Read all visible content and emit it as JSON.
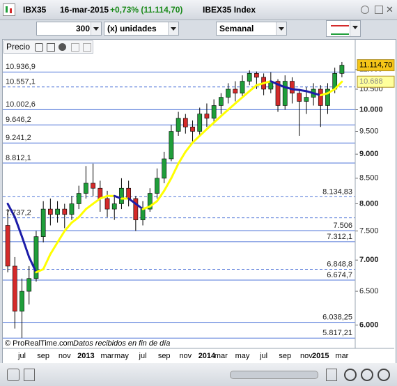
{
  "window": {
    "symbol": "IBX35",
    "date": "16-mar-2015",
    "change": "+0,73% (11.114,70)",
    "name": "IBEX35 Index"
  },
  "toolbar": {
    "units_count": "300",
    "units": "(x) unidades",
    "period": "Semanal"
  },
  "panel": {
    "label": "Precio"
  },
  "footer": {
    "copyright": "© ProRealTime.com",
    "note": "Datos recibidos en fin de día"
  },
  "chart_data": {
    "type": "candlestick",
    "log_scale": true,
    "categories": [
      null,
      null,
      "jul",
      null,
      null,
      "sep",
      null,
      null,
      "nov",
      null,
      null,
      "2013",
      null,
      null,
      "mar",
      null,
      "may",
      null,
      null,
      "jul",
      null,
      null,
      "sep",
      null,
      null,
      "nov",
      null,
      null,
      "2014",
      null,
      "mar",
      null,
      null,
      "may",
      null,
      null,
      "jul",
      null,
      null,
      "sep",
      null,
      null,
      "nov",
      null,
      "2015",
      null,
      null,
      "mar"
    ],
    "open": [
      7600,
      6900,
      6200,
      6500,
      6700,
      7400,
      7900,
      7800,
      7900,
      7800,
      8000,
      8200,
      8400,
      8300,
      8100,
      7900,
      8000,
      8300,
      8100,
      7700,
      7900,
      8200,
      8500,
      8900,
      9500,
      9800,
      9600,
      9500,
      9900,
      9800,
      10100,
      10300,
      10500,
      10400,
      10700,
      10900,
      10800,
      10500,
      10700,
      10100,
      10700,
      10400,
      10200,
      10300,
      10500,
      10100,
      10500,
      10900
    ],
    "high": [
      7900,
      7050,
      6700,
      6900,
      7500,
      8050,
      8100,
      8050,
      8000,
      8150,
      8350,
      8750,
      8800,
      8450,
      8250,
      8150,
      8500,
      8450,
      8150,
      8050,
      8300,
      8700,
      9050,
      9650,
      9950,
      9900,
      9750,
      10050,
      10150,
      10250,
      10400,
      10650,
      10700,
      10850,
      10980,
      10950,
      10900,
      10930,
      10750,
      10850,
      10800,
      10500,
      10550,
      10650,
      10600,
      10650,
      11050,
      11200
    ],
    "low": [
      6800,
      5950,
      5820,
      6300,
      6650,
      7300,
      7600,
      7650,
      7550,
      7700,
      7900,
      8100,
      8150,
      7850,
      7750,
      7700,
      7900,
      7950,
      7500,
      7600,
      7850,
      8100,
      8400,
      8850,
      9400,
      9450,
      9250,
      9400,
      9600,
      9700,
      9900,
      10150,
      10200,
      10300,
      10600,
      10500,
      10350,
      10400,
      9950,
      10000,
      10150,
      9400,
      9900,
      10100,
      9600,
      9900,
      10400,
      10800
    ],
    "close": [
      6900,
      6200,
      6500,
      6700,
      7400,
      7900,
      7800,
      7900,
      7800,
      8000,
      8200,
      8400,
      8300,
      8100,
      7900,
      8000,
      8300,
      8100,
      7700,
      7900,
      8200,
      8500,
      8900,
      9500,
      9800,
      9600,
      9500,
      9900,
      9800,
      10100,
      10300,
      10500,
      10400,
      10700,
      10900,
      10800,
      10500,
      10700,
      10100,
      10700,
      10400,
      10200,
      10300,
      10500,
      10100,
      10500,
      10900,
      11115
    ],
    "up_color": "#1f9e3a",
    "down_color": "#d42a2a",
    "wick_color": "#000000",
    "moving_average": {
      "values": [
        8000,
        7750,
        7400,
        7050,
        6800,
        6850,
        7100,
        7300,
        7500,
        7650,
        7750,
        7900,
        8000,
        8100,
        8150,
        8150,
        8100,
        8100,
        8000,
        7900,
        7950,
        8050,
        8250,
        8500,
        8800,
        9050,
        9250,
        9400,
        9550,
        9700,
        9850,
        10000,
        10150,
        10300,
        10450,
        10600,
        10650,
        10700,
        10620,
        10550,
        10500,
        10480,
        10450,
        10400,
        10350,
        10400,
        10500,
        10688
      ],
      "rising_color": "#ffff00",
      "falling_color": "#1c1ca8"
    },
    "ylim": [
      5800,
      11480
    ],
    "yticks": [
      {
        "value": 6000,
        "label": "6.000"
      },
      {
        "value": 6500,
        "label": "6.500"
      },
      {
        "value": 7000,
        "label": "7.000"
      },
      {
        "value": 7500,
        "label": "7.500"
      },
      {
        "value": 8000,
        "label": "8.000"
      },
      {
        "value": 8500,
        "label": "8.500"
      },
      {
        "value": 9000,
        "label": "9.000"
      },
      {
        "value": 9500,
        "label": "9.500"
      },
      {
        "value": 10000,
        "label": "10.000"
      },
      {
        "value": 10500,
        "label": "10.500"
      },
      {
        "value": 11000,
        "label": "11.000"
      }
    ],
    "last_price": {
      "value": 11114.7,
      "label": "11.114,70"
    },
    "ma_last": {
      "value": 10688,
      "label": "10.688"
    },
    "levels": [
      {
        "value": 10936.9,
        "label": "10.936,9",
        "side": "left",
        "dashed": false
      },
      {
        "value": 10557.1,
        "label": "10.557,1",
        "side": "left",
        "dashed": true
      },
      {
        "value": 10002.6,
        "label": "10.002,6",
        "side": "left",
        "dashed": false
      },
      {
        "value": 9646.2,
        "label": "9.646,2",
        "side": "left",
        "dashed": false
      },
      {
        "value": 9241.2,
        "label": "9.241,2",
        "side": "left",
        "dashed": false
      },
      {
        "value": 8812.1,
        "label": "8.812,1",
        "side": "left",
        "dashed": false
      },
      {
        "value": 7737.2,
        "label": "7.737,2",
        "side": "left",
        "dashed": true
      },
      {
        "value": 8134.83,
        "label": "8.134,83",
        "side": "right",
        "dashed": true
      },
      {
        "value": 7506,
        "label": "7.506",
        "side": "right",
        "dashed": false
      },
      {
        "value": 7312.1,
        "label": "7.312,1",
        "side": "right",
        "dashed": false
      },
      {
        "value": 6848.8,
        "label": "6.848,8",
        "side": "right",
        "dashed": true
      },
      {
        "value": 6674.7,
        "label": "6.674,7",
        "side": "right",
        "dashed": false
      },
      {
        "value": 6038.25,
        "label": "6.038,25",
        "side": "right",
        "dashed": false
      },
      {
        "value": 5817.21,
        "label": "5.817,21",
        "side": "right",
        "dashed": false
      }
    ],
    "level_color": "#4f74d8"
  }
}
